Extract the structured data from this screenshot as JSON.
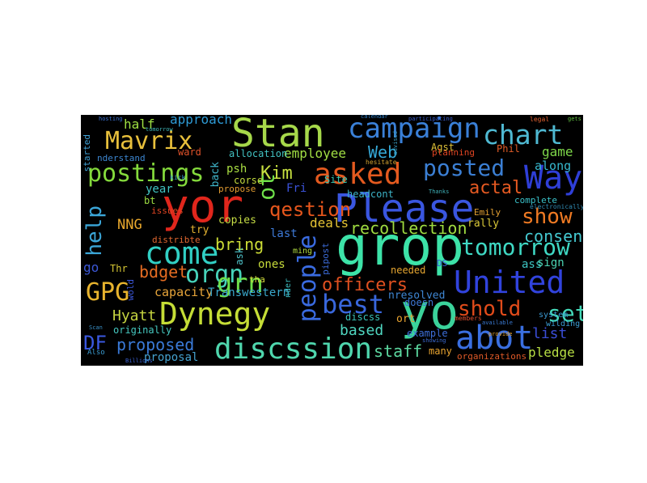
{
  "words": [
    {
      "text": "Stan",
      "color": "#a6d84a"
    },
    {
      "text": "yor",
      "color": "#e0261c"
    },
    {
      "text": "grop",
      "color": "#3de3a8"
    },
    {
      "text": "yo",
      "color": "#3bd39b"
    },
    {
      "text": "Please",
      "color": "#3a56e0"
    },
    {
      "text": "campaign",
      "color": "#3a80d8"
    },
    {
      "text": "chart",
      "color": "#4fb9d2"
    },
    {
      "text": "Mavrix",
      "color": "#e8c03c"
    },
    {
      "text": "postings",
      "color": "#84da3c"
    },
    {
      "text": "asked",
      "color": "#e45a1f"
    },
    {
      "text": "Way",
      "color": "#2f3fd8"
    },
    {
      "text": "posted",
      "color": "#3b7fd4"
    },
    {
      "text": "come",
      "color": "#31cfc4"
    },
    {
      "text": "United",
      "color": "#3143dd"
    },
    {
      "text": "Dynegy",
      "color": "#c5dd36"
    },
    {
      "text": "abot",
      "color": "#3a6fe0"
    },
    {
      "text": "discssion",
      "color": "#4fd6ad"
    },
    {
      "text": "people",
      "color": "#3a6be0"
    },
    {
      "text": "best",
      "color": "#3967dc"
    },
    {
      "text": "orgn",
      "color": "#47d3ba"
    },
    {
      "text": "grn",
      "color": "#6ddf4a"
    },
    {
      "text": "GPG",
      "color": "#e8b42e"
    },
    {
      "text": "qestion",
      "color": "#e6561c"
    },
    {
      "text": "tomorrow",
      "color": "#3fd9c4"
    },
    {
      "text": "shold",
      "color": "#e14b1a"
    },
    {
      "text": "officers",
      "color": "#e05020"
    },
    {
      "text": "show",
      "color": "#ef7a23"
    },
    {
      "text": "set",
      "color": "#44d8b8"
    },
    {
      "text": "DF",
      "color": "#3a58e0"
    },
    {
      "text": "proposed",
      "color": "#3a7ad8"
    },
    {
      "text": "help",
      "color": "#3ba6d8"
    },
    {
      "text": "Web",
      "color": "#35a8d6"
    },
    {
      "text": "Kim",
      "color": "#c7e040"
    },
    {
      "text": "ot",
      "color": "#6fe04a"
    },
    {
      "text": "actal",
      "color": "#e65a22"
    },
    {
      "text": "consenss",
      "color": "#44c8d0"
    },
    {
      "text": "recollection",
      "color": "#a0dc40"
    },
    {
      "text": "bdget",
      "color": "#e56c22"
    },
    {
      "text": "half",
      "color": "#9fe043"
    },
    {
      "text": "approach",
      "color": "#2e9bd6"
    },
    {
      "text": "employee",
      "color": "#a2df44"
    },
    {
      "text": "allocation",
      "color": "#42c2c2"
    },
    {
      "text": "bring",
      "color": "#cddd36"
    },
    {
      "text": "NNG",
      "color": "#e8a72d"
    },
    {
      "text": "Hyatt",
      "color": "#c5d440"
    },
    {
      "text": "capacity",
      "color": "#e8a53a"
    },
    {
      "text": "Transwestern",
      "color": "#3aa8cc"
    },
    {
      "text": "staff",
      "color": "#5cd8a0"
    },
    {
      "text": "based",
      "color": "#4fd6c0"
    },
    {
      "text": "list",
      "color": "#3a4dd6"
    },
    {
      "text": "pledge",
      "color": "#b8df44"
    },
    {
      "text": "proposal",
      "color": "#45a2d0"
    },
    {
      "text": "year",
      "color": "#41c4c3"
    },
    {
      "text": "deals",
      "color": "#e6c434"
    },
    {
      "text": "ones",
      "color": "#c8dc3b"
    },
    {
      "text": "copies",
      "color": "#c6dd45"
    },
    {
      "text": "game",
      "color": "#7ed84a"
    },
    {
      "text": "along",
      "color": "#37b9cf"
    },
    {
      "text": "Agst",
      "color": "#e0c238"
    },
    {
      "text": "Phil",
      "color": "#e05c28"
    },
    {
      "text": "Fri",
      "color": "#3b52d8"
    },
    {
      "text": "Site",
      "color": "#38c6b0"
    },
    {
      "text": "headcont",
      "color": "#3db4c8"
    },
    {
      "text": "psh",
      "color": "#a9dd42"
    },
    {
      "text": "back",
      "color": "#3fb6cb"
    },
    {
      "text": "corse",
      "color": "#c2da3d"
    },
    {
      "text": "propose",
      "color": "#e39c31"
    },
    {
      "text": "ward",
      "color": "#e0522a"
    },
    {
      "text": "started",
      "color": "#3fa1d6"
    },
    {
      "text": "nderstand",
      "color": "#3c86d0"
    },
    {
      "text": "issues",
      "color": "#e04422"
    },
    {
      "text": "bt",
      "color": "#9bdb41"
    },
    {
      "text": "try",
      "color": "#e3b231"
    },
    {
      "text": "distribte",
      "color": "#e06730"
    },
    {
      "text": "last",
      "color": "#3e7ad8"
    },
    {
      "text": "go",
      "color": "#3c58d8"
    },
    {
      "text": "Thr",
      "color": "#d7c734"
    },
    {
      "text": "ask",
      "color": "#4ec1c8"
    },
    {
      "text": "tha",
      "color": "#d2da3b"
    },
    {
      "text": "originally",
      "color": "#46c8c0"
    },
    {
      "text": "many",
      "color": "#e8a42f"
    },
    {
      "text": "ort",
      "color": "#e8a330"
    },
    {
      "text": "doesn",
      "color": "#3e77d6"
    },
    {
      "text": "example",
      "color": "#3d6ed8"
    },
    {
      "text": "nresolved",
      "color": "#3e86d2"
    },
    {
      "text": "discss",
      "color": "#3ac3b8"
    },
    {
      "text": "needed",
      "color": "#e6a630"
    },
    {
      "text": "organizations",
      "color": "#e05a28"
    },
    {
      "text": "ass",
      "color": "#3dc6c4"
    },
    {
      "text": "sign",
      "color": "#4bd3b3"
    },
    {
      "text": "complete",
      "color": "#3ac0c8"
    },
    {
      "text": "rally",
      "color": "#d9c838"
    },
    {
      "text": "Emily",
      "color": "#e3a032"
    },
    {
      "text": "wold",
      "color": "#3b56d8"
    },
    {
      "text": "system",
      "color": "#3b9ad2"
    },
    {
      "text": "nder",
      "color": "#3dbfc2"
    },
    {
      "text": "ming",
      "color": "#b3de40"
    },
    {
      "text": "pipost",
      "color": "#3b6ad6"
    },
    {
      "text": "planning",
      "color": "#e04422"
    },
    {
      "text": "DS",
      "color": "#3a5ad6"
    },
    {
      "text": "electronically",
      "color": "#2f88b0"
    },
    {
      "text": "wilding",
      "color": "#3a9ad0"
    },
    {
      "text": "calendar",
      "color": "#2e7fc8"
    },
    {
      "text": "participating",
      "color": "#3a5fd0"
    },
    {
      "text": "advised",
      "color": "#3aa0c8"
    },
    {
      "text": "hesitate",
      "color": "#d0a030"
    },
    {
      "text": "Thanks",
      "color": "#3fb0b8"
    },
    {
      "text": "showing",
      "color": "#3b6ad0"
    },
    {
      "text": "members",
      "color": "#e05030"
    },
    {
      "text": "available",
      "color": "#3a78d0"
    },
    {
      "text": "legal",
      "color": "#e06030"
    },
    {
      "text": "provide",
      "color": "#e0a030"
    },
    {
      "text": "Also",
      "color": "#3a9ad0"
    },
    {
      "text": "Billions",
      "color": "#3a60d0"
    },
    {
      "text": "tomorrow",
      "color": "#3fb6b8"
    },
    {
      "text": "kick",
      "color": "#3a9ad0"
    },
    {
      "text": "gets",
      "color": "#60c040"
    },
    {
      "text": "hosting",
      "color": "#3a70d0"
    },
    {
      "text": "Scan",
      "color": "#3a90c8"
    }
  ]
}
